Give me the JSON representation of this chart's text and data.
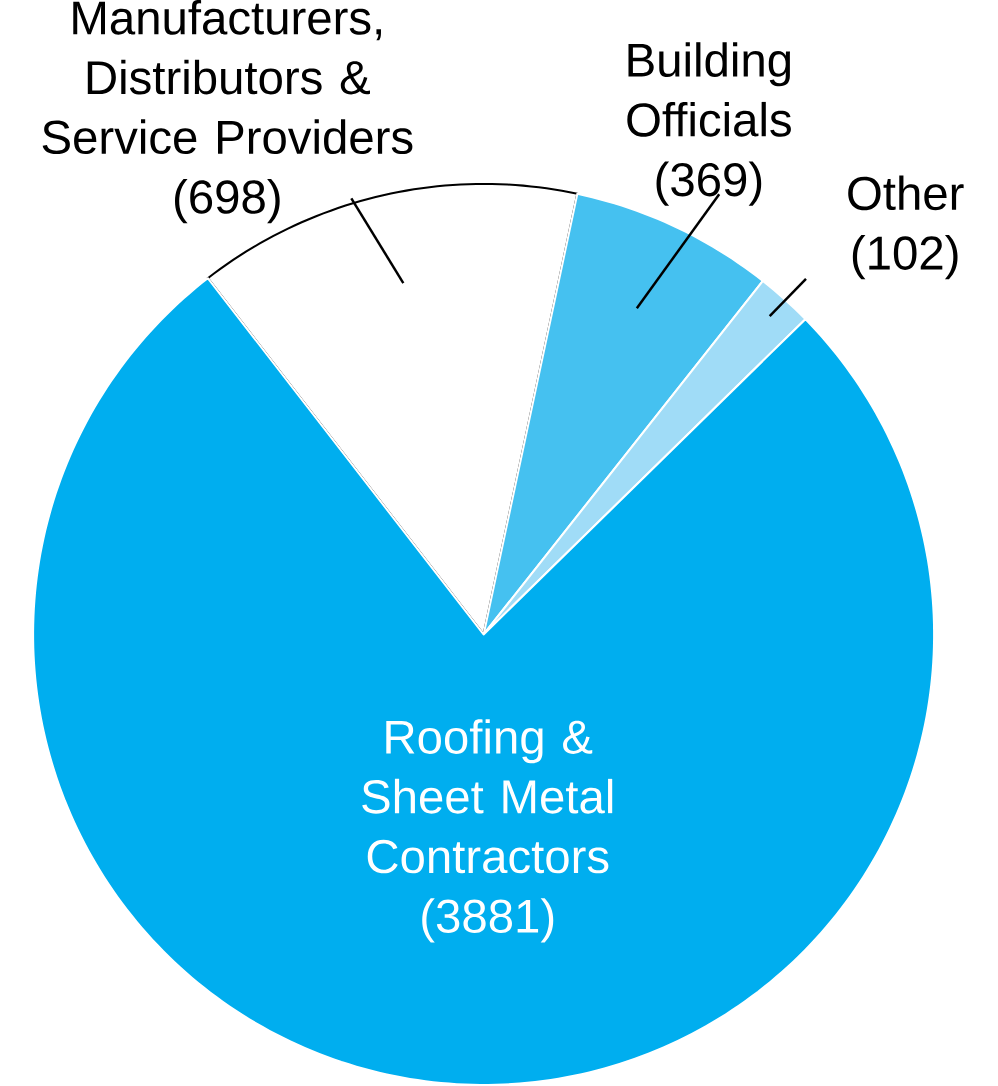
{
  "chart_data": {
    "type": "pie",
    "categories": [
      "Manufacturers, Distributors & Service Providers",
      "Building Officials",
      "Other",
      "Roofing & Sheet Metal Contractors"
    ],
    "values": [
      698,
      369,
      102,
      3881
    ],
    "value_labels": [
      "(698)",
      "(369)",
      "(102)",
      "(3881)"
    ],
    "colors": [
      "#ffffff",
      "#45c1f0",
      "#a0dcf7",
      "#00aeef"
    ]
  }
}
